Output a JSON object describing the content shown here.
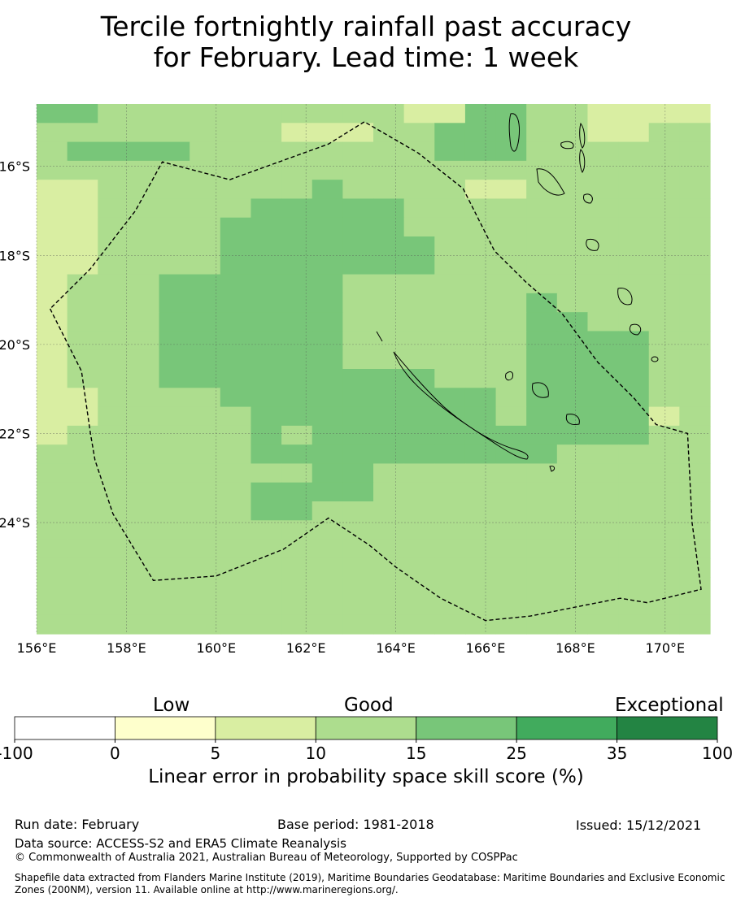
{
  "title_line1": "Tercile fortnightly rainfall past accuracy",
  "title_line2": "for February. Lead time: 1 week",
  "map": {
    "lon_range": [
      156,
      171
    ],
    "lat_range": [
      -26.5,
      -14.6
    ],
    "lon_ticks": [
      {
        "value": 156,
        "label": "156°E"
      },
      {
        "value": 158,
        "label": "158°E"
      },
      {
        "value": 160,
        "label": "160°E"
      },
      {
        "value": 162,
        "label": "162°E"
      },
      {
        "value": 164,
        "label": "164°E"
      },
      {
        "value": 166,
        "label": "166°E"
      },
      {
        "value": 168,
        "label": "168°E"
      },
      {
        "value": 170,
        "label": "170°E"
      }
    ],
    "lat_ticks": [
      {
        "value": -16,
        "label": "16°S"
      },
      {
        "value": -18,
        "label": "18°S"
      },
      {
        "value": -20,
        "label": "20°S"
      },
      {
        "value": -22,
        "label": "22°S"
      },
      {
        "value": -24,
        "label": "24°S"
      }
    ],
    "color_key": {
      "1": "#feffcc",
      "2": "#d9eea2",
      "3": "#addd8e",
      "4": "#78c679",
      "5": "#41ab5d",
      "6": "#238443",
      "0": "#ffffff"
    },
    "grid_rows": [
      "4433333333332244332222",
      "3333333322233444332233",
      "3444433333333444333333",
      "3333333333333333333333",
      "2233333334333322333333",
      "2233333444443333333333",
      "2233334444443333333333",
      "2233334444444333333333",
      "2233334444444333333333",
      "2333444444333333333333",
      "2333444444333333433333",
      "2333444444333333443333",
      "2333444444333333444433",
      "2333444444333333444433",
      "2333444444444333444433",
      "2233334444444443444433",
      "2233333444444443444423",
      "2333333434444444444433",
      "3333333444444444433333",
      "3333333334433333333333",
      "3333333444433333333333",
      "3333333443333333333333",
      "3333333333333333333333",
      "3333333333333333333333",
      "3333333333333333333333",
      "3333333333333333333333",
      "3333333333333333333333",
      "3333333333333333333333"
    ],
    "eez_boundary": [
      [
        156.3,
        -19.2
      ],
      [
        157.0,
        -20.6
      ],
      [
        157.2,
        -22.0
      ],
      [
        157.3,
        -22.6
      ],
      [
        157.7,
        -23.8
      ],
      [
        158.6,
        -25.3
      ],
      [
        160.0,
        -25.2
      ],
      [
        161.5,
        -24.6
      ],
      [
        162.5,
        -23.9
      ],
      [
        163.4,
        -24.5
      ],
      [
        164.0,
        -25.0
      ],
      [
        165.0,
        -25.7
      ],
      [
        166.0,
        -26.2
      ],
      [
        167.0,
        -26.1
      ],
      [
        168.0,
        -25.9
      ],
      [
        169.0,
        -25.7
      ],
      [
        169.6,
        -25.8
      ],
      [
        170.8,
        -25.5
      ],
      [
        170.6,
        -24.0
      ],
      [
        170.5,
        -22.0
      ],
      [
        169.8,
        -21.8
      ],
      [
        169.3,
        -21.2
      ],
      [
        168.5,
        -20.4
      ],
      [
        167.7,
        -19.3
      ],
      [
        166.9,
        -18.6
      ],
      [
        166.2,
        -17.9
      ],
      [
        165.5,
        -16.5
      ],
      [
        164.5,
        -15.7
      ],
      [
        163.3,
        -15.0
      ],
      [
        162.5,
        -15.5
      ],
      [
        160.3,
        -16.3
      ],
      [
        158.8,
        -15.9
      ],
      [
        158.2,
        -17.0
      ],
      [
        157.2,
        -18.3
      ],
      [
        156.3,
        -19.2
      ]
    ]
  },
  "colorbar": {
    "category_labels": [
      "Low",
      "Good",
      "Exceptional"
    ],
    "tick_labels": [
      "-100",
      "0",
      "5",
      "10",
      "15",
      "25",
      "35",
      "100"
    ],
    "colors": [
      "#ffffff",
      "#feffcc",
      "#d9eea2",
      "#addd8e",
      "#78c679",
      "#41ab5d",
      "#238443"
    ],
    "title": "Linear error in probability space skill score (%)"
  },
  "footer": {
    "run_date": "Run date: February",
    "base_period": "Base period: 1981-2018",
    "issued": "Issued: 15/12/2021",
    "data_source": "Data source: ACCESS-S2 and ERA5 Climate Reanalysis",
    "copyright": "© Commonwealth of Australia 2021, Australian Bureau of Meteorology, Supported by COSPPac",
    "shapefile_line1": "Shapefile data extracted from Flanders Marine Institute (2019), Maritime Boundaries Geodatabase: Maritime Boundaries and Exclusive Economic",
    "shapefile_line2": "Zones (200NM), version 11. Available online at http://www.marineregions.org/."
  }
}
